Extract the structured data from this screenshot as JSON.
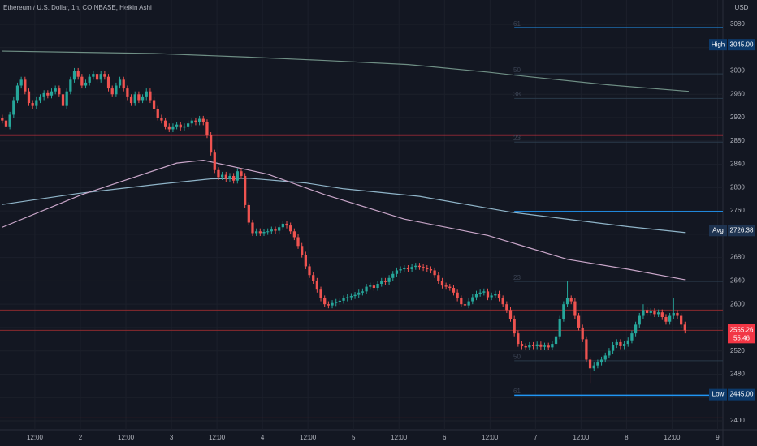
{
  "chart_data": {
    "type": "candlestick",
    "title": "Ethereum / U.S. Dollar, 1h, COINBASE, Heikin Ashi",
    "currency": "USD",
    "up_color": "#26a69a",
    "down_color": "#ef5350",
    "ylim": [
      2384.7,
      3121.7
    ],
    "yticks": [
      2400,
      2440,
      2480,
      2520,
      2560,
      2600,
      2640,
      2680,
      2720,
      2760,
      2800,
      2840,
      2880,
      2920,
      2960,
      3000,
      3040,
      3080
    ],
    "xlim": [
      -0.6,
      190
    ],
    "xticks": [
      {
        "value": 8.6,
        "label": "12:00"
      },
      {
        "value": 20.6,
        "label": "2"
      },
      {
        "value": 32.6,
        "label": "12:00"
      },
      {
        "value": 44.6,
        "label": "3"
      },
      {
        "value": 56.6,
        "label": "12:00"
      },
      {
        "value": 68.6,
        "label": "4"
      },
      {
        "value": 80.6,
        "label": "12:00"
      },
      {
        "value": 92.6,
        "label": "5"
      },
      {
        "value": 104.6,
        "label": "12:00"
      },
      {
        "value": 116.6,
        "label": "6"
      },
      {
        "value": 128.6,
        "label": "12:00"
      },
      {
        "value": 140.6,
        "label": "7"
      },
      {
        "value": 152.6,
        "label": "12:00"
      },
      {
        "value": 164.6,
        "label": "8"
      },
      {
        "value": 176.6,
        "label": "12:00"
      },
      {
        "value": 188.6,
        "label": "9"
      }
    ],
    "ohlc": [
      [
        2920,
        2925,
        2910,
        2915
      ],
      [
        2915,
        2920,
        2900,
        2905
      ],
      [
        2905,
        2930,
        2900,
        2925
      ],
      [
        2925,
        2955,
        2920,
        2950
      ],
      [
        2950,
        2980,
        2945,
        2975
      ],
      [
        2975,
        2990,
        2970,
        2985
      ],
      [
        2985,
        2990,
        2960,
        2965
      ],
      [
        2965,
        2970,
        2940,
        2945
      ],
      [
        2945,
        2950,
        2935,
        2940
      ],
      [
        2940,
        2955,
        2935,
        2950
      ],
      [
        2950,
        2960,
        2945,
        2955
      ],
      [
        2955,
        2967,
        2950,
        2962
      ],
      [
        2962,
        2967,
        2953,
        2958
      ],
      [
        2958,
        2970,
        2953,
        2965
      ],
      [
        2965,
        2975,
        2960,
        2970
      ],
      [
        2970,
        2975,
        2955,
        2960
      ],
      [
        2960,
        2965,
        2935,
        2940
      ],
      [
        2940,
        2970,
        2935,
        2965
      ],
      [
        2965,
        2990,
        2960,
        2985
      ],
      [
        2985,
        3005,
        2980,
        3000
      ],
      [
        3000,
        3005,
        2985,
        2990
      ],
      [
        2990,
        2995,
        2970,
        2975
      ],
      [
        2975,
        2985,
        2970,
        2980
      ],
      [
        2980,
        2995,
        2975,
        2990
      ],
      [
        2990,
        3000,
        2985,
        2995
      ],
      [
        2995,
        3000,
        2980,
        2985
      ],
      [
        2985,
        3000,
        2980,
        2995
      ],
      [
        2995,
        3000,
        2985,
        2990
      ],
      [
        2990,
        2995,
        2965,
        2970
      ],
      [
        2970,
        2975,
        2955,
        2960
      ],
      [
        2960,
        2980,
        2955,
        2975
      ],
      [
        2975,
        2990,
        2970,
        2985
      ],
      [
        2985,
        2990,
        2965,
        2970
      ],
      [
        2970,
        2975,
        2950,
        2955
      ],
      [
        2955,
        2960,
        2940,
        2945
      ],
      [
        2945,
        2965,
        2940,
        2960
      ],
      [
        2960,
        2965,
        2945,
        2950
      ],
      [
        2950,
        2960,
        2945,
        2955
      ],
      [
        2955,
        2970,
        2950,
        2965
      ],
      [
        2965,
        2970,
        2945,
        2950
      ],
      [
        2950,
        2955,
        2930,
        2935
      ],
      [
        2935,
        2940,
        2915,
        2920
      ],
      [
        2920,
        2925,
        2910,
        2915
      ],
      [
        2915,
        2920,
        2900,
        2905
      ],
      [
        2905,
        2910,
        2895,
        2900
      ],
      [
        2900,
        2910,
        2895,
        2905
      ],
      [
        2905,
        2913,
        2900,
        2908
      ],
      [
        2908,
        2913,
        2898,
        2903
      ],
      [
        2903,
        2910,
        2898,
        2905
      ],
      [
        2905,
        2915,
        2900,
        2910
      ],
      [
        2910,
        2920,
        2905,
        2915
      ],
      [
        2915,
        2920,
        2907,
        2912
      ],
      [
        2912,
        2923,
        2907,
        2918
      ],
      [
        2918,
        2923,
        2907,
        2912
      ],
      [
        2912,
        2917,
        2885,
        2890
      ],
      [
        2890,
        2895,
        2855,
        2860
      ],
      [
        2860,
        2865,
        2825,
        2830
      ],
      [
        2830,
        2835,
        2813,
        2818
      ],
      [
        2818,
        2827,
        2813,
        2822
      ],
      [
        2822,
        2827,
        2810,
        2815
      ],
      [
        2815,
        2825,
        2810,
        2820
      ],
      [
        2820,
        2825,
        2807,
        2812
      ],
      [
        2812,
        2833,
        2807,
        2828
      ],
      [
        2828,
        2833,
        2815,
        2820
      ],
      [
        2820,
        2825,
        2765,
        2770
      ],
      [
        2770,
        2775,
        2735,
        2740
      ],
      [
        2740,
        2745,
        2717,
        2722
      ],
      [
        2722,
        2730,
        2717,
        2725
      ],
      [
        2725,
        2730,
        2717,
        2722
      ],
      [
        2722,
        2729,
        2717,
        2724
      ],
      [
        2724,
        2730,
        2719,
        2725
      ],
      [
        2725,
        2733,
        2720,
        2728
      ],
      [
        2728,
        2733,
        2721,
        2726
      ],
      [
        2726,
        2737,
        2721,
        2732
      ],
      [
        2732,
        2743,
        2727,
        2738
      ],
      [
        2738,
        2743,
        2730,
        2735
      ],
      [
        2735,
        2740,
        2720,
        2725
      ],
      [
        2725,
        2730,
        2710,
        2715
      ],
      [
        2715,
        2720,
        2695,
        2700
      ],
      [
        2700,
        2705,
        2680,
        2685
      ],
      [
        2685,
        2690,
        2660,
        2665
      ],
      [
        2665,
        2670,
        2645,
        2650
      ],
      [
        2650,
        2655,
        2635,
        2640
      ],
      [
        2640,
        2645,
        2620,
        2625
      ],
      [
        2625,
        2630,
        2605,
        2610
      ],
      [
        2610,
        2615,
        2595,
        2600
      ],
      [
        2600,
        2605,
        2593,
        2598
      ],
      [
        2598,
        2607,
        2593,
        2602
      ],
      [
        2602,
        2609,
        2597,
        2604
      ],
      [
        2604,
        2611,
        2599,
        2606
      ],
      [
        2606,
        2615,
        2601,
        2610
      ],
      [
        2610,
        2617,
        2605,
        2612
      ],
      [
        2612,
        2619,
        2607,
        2614
      ],
      [
        2614,
        2621,
        2609,
        2616
      ],
      [
        2616,
        2625,
        2611,
        2620
      ],
      [
        2620,
        2627,
        2615,
        2622
      ],
      [
        2622,
        2635,
        2617,
        2630
      ],
      [
        2630,
        2637,
        2625,
        2632
      ],
      [
        2632,
        2637,
        2623,
        2628
      ],
      [
        2628,
        2640,
        2623,
        2635
      ],
      [
        2635,
        2645,
        2630,
        2640
      ],
      [
        2640,
        2645,
        2633,
        2638
      ],
      [
        2638,
        2650,
        2633,
        2645
      ],
      [
        2645,
        2657,
        2640,
        2652
      ],
      [
        2652,
        2663,
        2647,
        2658
      ],
      [
        2658,
        2665,
        2653,
        2660
      ],
      [
        2660,
        2667,
        2655,
        2662
      ],
      [
        2662,
        2667,
        2655,
        2660
      ],
      [
        2660,
        2669,
        2655,
        2664
      ],
      [
        2664,
        2671,
        2659,
        2666
      ],
      [
        2666,
        2671,
        2659,
        2664
      ],
      [
        2664,
        2669,
        2657,
        2662
      ],
      [
        2662,
        2667,
        2655,
        2660
      ],
      [
        2660,
        2665,
        2653,
        2658
      ],
      [
        2658,
        2663,
        2645,
        2650
      ],
      [
        2650,
        2655,
        2635,
        2640
      ],
      [
        2640,
        2645,
        2627,
        2632
      ],
      [
        2632,
        2637,
        2625,
        2630
      ],
      [
        2630,
        2635,
        2623,
        2628
      ],
      [
        2628,
        2633,
        2615,
        2620
      ],
      [
        2620,
        2625,
        2605,
        2610
      ],
      [
        2610,
        2615,
        2595,
        2600
      ],
      [
        2600,
        2605,
        2593,
        2598
      ],
      [
        2598,
        2610,
        2593,
        2605
      ],
      [
        2605,
        2617,
        2600,
        2612
      ],
      [
        2612,
        2623,
        2607,
        2618
      ],
      [
        2618,
        2625,
        2613,
        2620
      ],
      [
        2620,
        2627,
        2615,
        2622
      ],
      [
        2622,
        2627,
        2607,
        2612
      ],
      [
        2612,
        2620,
        2607,
        2615
      ],
      [
        2615,
        2623,
        2610,
        2618
      ],
      [
        2618,
        2623,
        2605,
        2610
      ],
      [
        2610,
        2615,
        2595,
        2600
      ],
      [
        2600,
        2605,
        2585,
        2590
      ],
      [
        2590,
        2595,
        2570,
        2575
      ],
      [
        2575,
        2580,
        2545,
        2550
      ],
      [
        2550,
        2555,
        2527,
        2532
      ],
      [
        2532,
        2537,
        2523,
        2528
      ],
      [
        2528,
        2533,
        2521,
        2526
      ],
      [
        2526,
        2535,
        2521,
        2530
      ],
      [
        2530,
        2535,
        2523,
        2528
      ],
      [
        2528,
        2536,
        2523,
        2531
      ],
      [
        2531,
        2536,
        2522,
        2527
      ],
      [
        2527,
        2534,
        2522,
        2529
      ],
      [
        2529,
        2534,
        2521,
        2526
      ],
      [
        2526,
        2537,
        2521,
        2532
      ],
      [
        2532,
        2550,
        2527,
        2545
      ],
      [
        2545,
        2580,
        2540,
        2575
      ],
      [
        2575,
        2605,
        2570,
        2600
      ],
      [
        2600,
        2640,
        2595,
        2610
      ],
      [
        2610,
        2615,
        2600,
        2605
      ],
      [
        2605,
        2610,
        2575,
        2580
      ],
      [
        2580,
        2585,
        2555,
        2560
      ],
      [
        2560,
        2565,
        2535,
        2540
      ],
      [
        2540,
        2545,
        2500,
        2505
      ],
      [
        2505,
        2510,
        2465,
        2490
      ],
      [
        2490,
        2500,
        2485,
        2495
      ],
      [
        2495,
        2505,
        2490,
        2500
      ],
      [
        2500,
        2510,
        2495,
        2505
      ],
      [
        2505,
        2517,
        2500,
        2512
      ],
      [
        2512,
        2525,
        2507,
        2520
      ],
      [
        2520,
        2535,
        2515,
        2530
      ],
      [
        2530,
        2540,
        2525,
        2535
      ],
      [
        2535,
        2540,
        2523,
        2528
      ],
      [
        2528,
        2537,
        2523,
        2532
      ],
      [
        2532,
        2543,
        2527,
        2538
      ],
      [
        2538,
        2555,
        2533,
        2550
      ],
      [
        2550,
        2570,
        2545,
        2565
      ],
      [
        2565,
        2585,
        2560,
        2580
      ],
      [
        2580,
        2600,
        2575,
        2590
      ],
      [
        2590,
        2595,
        2580,
        2585
      ],
      [
        2585,
        2593,
        2580,
        2588
      ],
      [
        2588,
        2593,
        2578,
        2583
      ],
      [
        2583,
        2591,
        2578,
        2586
      ],
      [
        2586,
        2591,
        2573,
        2578
      ],
      [
        2578,
        2583,
        2565,
        2570
      ],
      [
        2570,
        2585,
        2565,
        2580
      ],
      [
        2580,
        2610,
        2575,
        2585
      ],
      [
        2585,
        2590,
        2575,
        2580
      ],
      [
        2580,
        2585,
        2560,
        2565
      ],
      [
        2565,
        2570,
        2550,
        2555.26
      ]
    ],
    "moving_averages": [
      {
        "color": "#6f8f85",
        "x": [
          0,
          40,
          64,
          85,
          107,
          128,
          139,
          160,
          181
        ],
        "values": [
          3034,
          3030,
          3024,
          3018,
          3011,
          2998,
          2990,
          2976,
          2965
        ]
      },
      {
        "color": "#8fb4c8",
        "x": [
          0,
          20,
          40,
          55,
          65,
          80,
          90,
          110,
          134,
          150,
          165,
          180
        ],
        "values": [
          2771,
          2790,
          2805,
          2815,
          2816,
          2808,
          2798,
          2785,
          2758,
          2745,
          2733,
          2723
        ]
      },
      {
        "color": "#c9a6c9",
        "x": [
          0,
          21,
          46,
          53,
          70,
          85,
          106,
          128,
          149,
          165,
          180
        ],
        "values": [
          2732,
          2788,
          2842,
          2847,
          2823,
          2788,
          2746,
          2718,
          2677,
          2660,
          2642
        ]
      }
    ],
    "levels": [
      {
        "value": 2890,
        "color": "#f23645",
        "width": 1.5,
        "x": [
          -0.6,
          190
        ]
      },
      {
        "value": 2590,
        "color": "#8a2a2e",
        "width": 1,
        "x": [
          -0.6,
          190
        ]
      },
      {
        "value": 2555.26,
        "color": "#8a2a2e",
        "width": 1,
        "x": [
          -0.6,
          190
        ]
      },
      {
        "value": 2405,
        "color": "#5a2226",
        "width": 1,
        "x": [
          -0.6,
          190
        ]
      },
      {
        "value": 3074,
        "color": "#2196f3",
        "width": 1.5,
        "x": [
          135,
          190
        ]
      },
      {
        "value": 2759,
        "color": "#2196f3",
        "width": 1.5,
        "x": [
          135,
          190
        ]
      },
      {
        "value": 2444,
        "color": "#2196f3",
        "width": 1.5,
        "x": [
          135,
          190
        ]
      },
      {
        "value": 2995,
        "color": "#2a3a4a",
        "width": 1,
        "x": [
          135,
          190
        ]
      },
      {
        "value": 2953,
        "color": "#2a3a4a",
        "width": 1,
        "x": [
          135,
          190
        ]
      },
      {
        "value": 2878,
        "color": "#2a3a4a",
        "width": 1,
        "x": [
          135,
          190
        ]
      },
      {
        "value": 2639,
        "color": "#2a3a4a",
        "width": 1,
        "x": [
          135,
          190
        ]
      },
      {
        "value": 2503,
        "color": "#2a3a4a",
        "width": 1,
        "x": [
          135,
          190
        ]
      }
    ],
    "level_labels": [
      {
        "value": 3080,
        "label": "61"
      },
      {
        "value": 3001,
        "label": "50"
      },
      {
        "value": 2959,
        "label": "38"
      },
      {
        "value": 2884,
        "label": "23"
      },
      {
        "value": 2645,
        "label": "23"
      },
      {
        "value": 2509,
        "label": "50"
      },
      {
        "value": 2450,
        "label": "61"
      }
    ],
    "badges": [
      {
        "label": "High",
        "value": 3045,
        "value_label": "3045.00",
        "color": "#0d3a6b"
      },
      {
        "label": "Avg",
        "value": 2726.38,
        "color": "#1e3350"
      },
      {
        "label": "Low",
        "value": 2445,
        "value_label": "2445.00",
        "color": "#0d3a6b"
      }
    ],
    "last_price": {
      "value": 2555.26,
      "countdown": "55:46",
      "color": "#f23645"
    }
  }
}
